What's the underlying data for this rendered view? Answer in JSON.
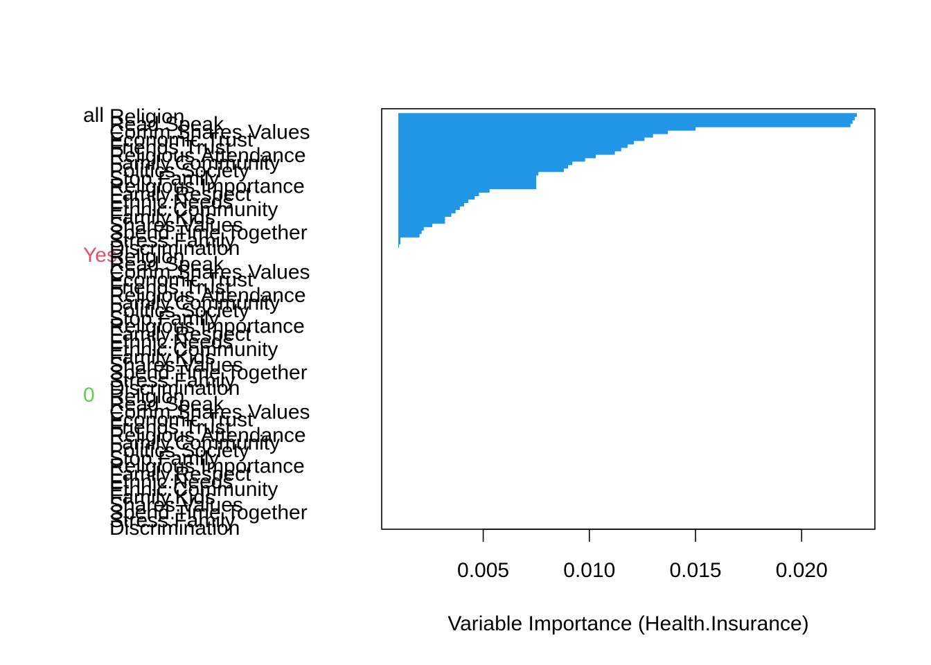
{
  "chart_data": {
    "type": "bar",
    "orientation": "horizontal",
    "xlabel": "Variable Importance (Health.Insurance)",
    "ylabel": "",
    "title": "",
    "xlim": [
      0.001,
      0.0227
    ],
    "xticks": [
      "0.005",
      "0.010",
      "0.015",
      "0.020"
    ],
    "grid": false,
    "bar_color": "#2196e6",
    "groups": [
      {
        "name": "all",
        "color": "#000000",
        "has_bars": true
      },
      {
        "name": "Yes",
        "color": "#df536b",
        "has_bars": false
      },
      {
        "name": "0",
        "color": "#61d04f",
        "has_bars": false
      }
    ],
    "variable_labels": [
      "Religion",
      "Read.Speak",
      "Comm.Shares.Values",
      "Economic.Trust",
      "Friends.Trust",
      "Religious.Attendance",
      "Family.Community",
      "Politics.Society",
      "Stop.Family",
      "Religious.Importance",
      "Family.Respect",
      "Ethnic.Needs",
      "Ethnic.Community",
      "Family.Kids",
      "Shares.Values",
      "Spend.Time.Together",
      "Stress.Family",
      "Discrimination"
    ],
    "series": [
      {
        "name": "all",
        "values": [
          0.0226,
          0.0225,
          0.0224,
          0.0223,
          0.015,
          0.0137,
          0.013,
          0.0126,
          0.0121,
          0.0118,
          0.0115,
          0.0112,
          0.0103,
          0.0098,
          0.0092,
          0.009,
          0.0088,
          0.0076,
          0.0075,
          0.0075,
          0.0075,
          0.0075,
          0.0053,
          0.0048,
          0.0046,
          0.0043,
          0.0041,
          0.0039,
          0.0037,
          0.0035,
          0.0032,
          0.0032,
          0.0026,
          0.0022,
          0.0021,
          0.002,
          0.0011,
          0.0011,
          0.001
        ]
      }
    ]
  }
}
